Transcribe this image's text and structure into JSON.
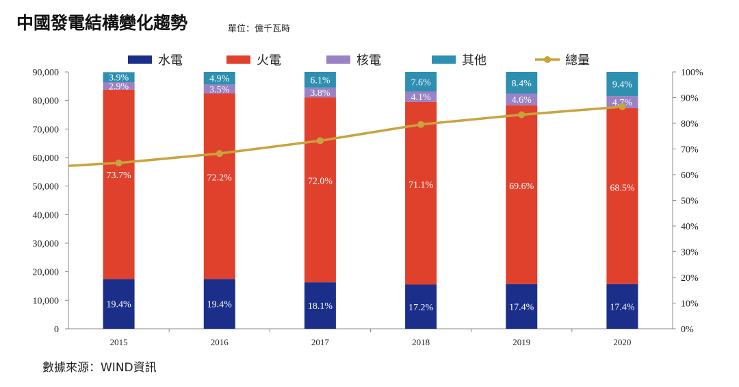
{
  "title": "中國發電結構變化趨勢",
  "unit": "單位：億千瓦時",
  "source": "數據來源：WIND資訊",
  "chart_data": {
    "type": "bar",
    "stacked": true,
    "categories": [
      "2015",
      "2016",
      "2017",
      "2018",
      "2019",
      "2020"
    ],
    "left_axis": {
      "ylim": [
        0,
        90000
      ],
      "ticks": [
        "0",
        "10,000",
        "20,000",
        "30,000",
        "40,000",
        "50,000",
        "60,000",
        "70,000",
        "80,000",
        "90,000"
      ]
    },
    "right_axis": {
      "ylim": [
        0,
        100
      ],
      "ticks": [
        "0%",
        "10%",
        "20%",
        "30%",
        "40%",
        "50%",
        "60%",
        "70%",
        "80%",
        "90%",
        "100%"
      ]
    },
    "series": [
      {
        "name": "水電",
        "color": "#1b2f8a",
        "labels": [
          "19.4%",
          "19.4%",
          "18.1%",
          "17.2%",
          "17.4%",
          "17.4%"
        ],
        "values": [
          19.4,
          19.4,
          18.1,
          17.2,
          17.4,
          17.4
        ]
      },
      {
        "name": "火電",
        "color": "#e0412c",
        "labels": [
          "73.7%",
          "72.2%",
          "72.0%",
          "71.1%",
          "69.6%",
          "68.5%"
        ],
        "values": [
          73.7,
          72.2,
          72.0,
          71.1,
          69.6,
          68.5
        ]
      },
      {
        "name": "核電",
        "color": "#9a82c4",
        "labels": [
          "2.9%",
          "3.5%",
          "3.8%",
          "4.1%",
          "4.6%",
          "4.7%"
        ],
        "values": [
          2.9,
          3.5,
          3.8,
          4.1,
          4.6,
          4.7
        ]
      },
      {
        "name": "其他",
        "color": "#2e8fb0",
        "labels": [
          "3.9%",
          "4.9%",
          "6.1%",
          "7.6%",
          "8.4%",
          "9.4%"
        ],
        "values": [
          3.9,
          4.9,
          6.1,
          7.6,
          8.4,
          9.4
        ]
      }
    ],
    "line": {
      "name": "總量",
      "color": "#c9a33c",
      "axis": "left",
      "values": [
        58100,
        61400,
        65900,
        71600,
        75000,
        77800
      ],
      "start_value": 57100
    },
    "legend_position": "top-center",
    "grid": false
  }
}
